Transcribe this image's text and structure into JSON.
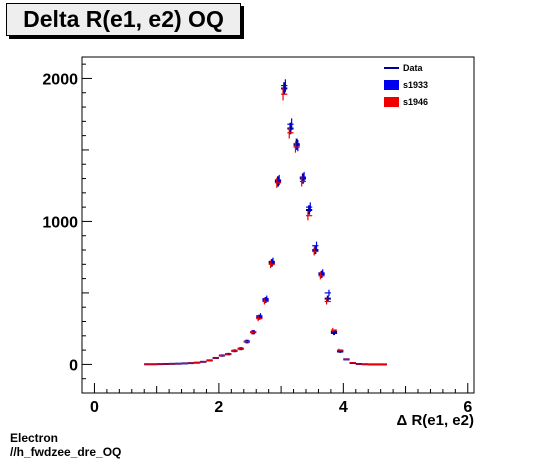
{
  "title": "Delta R(e1, e2) OQ",
  "footer": {
    "line1": "Electron",
    "line2": "//h_fwdzee_dre_OQ"
  },
  "chart_data": {
    "type": "scatter",
    "title": "Delta R(e1, e2) OQ",
    "xlabel": "Δ R(e1, e2)",
    "ylabel": "",
    "xlim": [
      -0.2,
      6.1
    ],
    "ylim": [
      -200,
      2150
    ],
    "x_ticks": [
      0,
      2,
      4,
      6
    ],
    "y_ticks": [
      0,
      1000,
      2000
    ],
    "grid": false,
    "legend_position": "top-right",
    "bin_width": 0.1,
    "legend": [
      {
        "name": "Data",
        "color": "#000099",
        "symbol": "line"
      },
      {
        "name": "s1933",
        "color": "#0000ee",
        "symbol": "box"
      },
      {
        "name": "s1946",
        "color": "#ee0000",
        "symbol": "box"
      }
    ],
    "x": [
      0.85,
      0.95,
      1.05,
      1.15,
      1.25,
      1.35,
      1.45,
      1.55,
      1.65,
      1.75,
      1.85,
      1.95,
      2.05,
      2.15,
      2.25,
      2.35,
      2.45,
      2.55,
      2.65,
      2.75,
      2.85,
      2.95,
      3.05,
      3.15,
      3.25,
      3.35,
      3.45,
      3.55,
      3.65,
      3.75,
      3.85,
      3.95,
      4.05,
      4.15,
      4.25,
      4.35,
      4.45,
      4.55,
      4.65
    ],
    "series": [
      {
        "name": "Data",
        "color": "#000099",
        "values": [
          1,
          1,
          2,
          3,
          4,
          5,
          7,
          9,
          12,
          18,
          28,
          45,
          62,
          72,
          95,
          110,
          160,
          225,
          330,
          450,
          710,
          1280,
          1930,
          1650,
          1540,
          1300,
          1080,
          800,
          630,
          460,
          220,
          90,
          35,
          10,
          3,
          1,
          0,
          0,
          0
        ]
      },
      {
        "name": "s1933",
        "color": "#0000ee",
        "values": [
          1,
          1,
          2,
          3,
          4,
          5,
          7,
          9,
          12,
          18,
          28,
          45,
          62,
          72,
          95,
          110,
          160,
          225,
          340,
          460,
          720,
          1290,
          1950,
          1680,
          1530,
          1310,
          1100,
          830,
          640,
          500,
          230,
          95,
          38,
          12,
          3,
          1,
          0,
          0,
          0
        ]
      },
      {
        "name": "s1946",
        "color": "#ee0000",
        "values": [
          1,
          1,
          2,
          3,
          4,
          5,
          7,
          9,
          12,
          18,
          28,
          45,
          62,
          72,
          95,
          110,
          160,
          225,
          320,
          440,
          700,
          1270,
          1890,
          1620,
          1520,
          1280,
          1040,
          790,
          620,
          440,
          240,
          100,
          36,
          12,
          3,
          1,
          0,
          0,
          0
        ]
      }
    ]
  }
}
